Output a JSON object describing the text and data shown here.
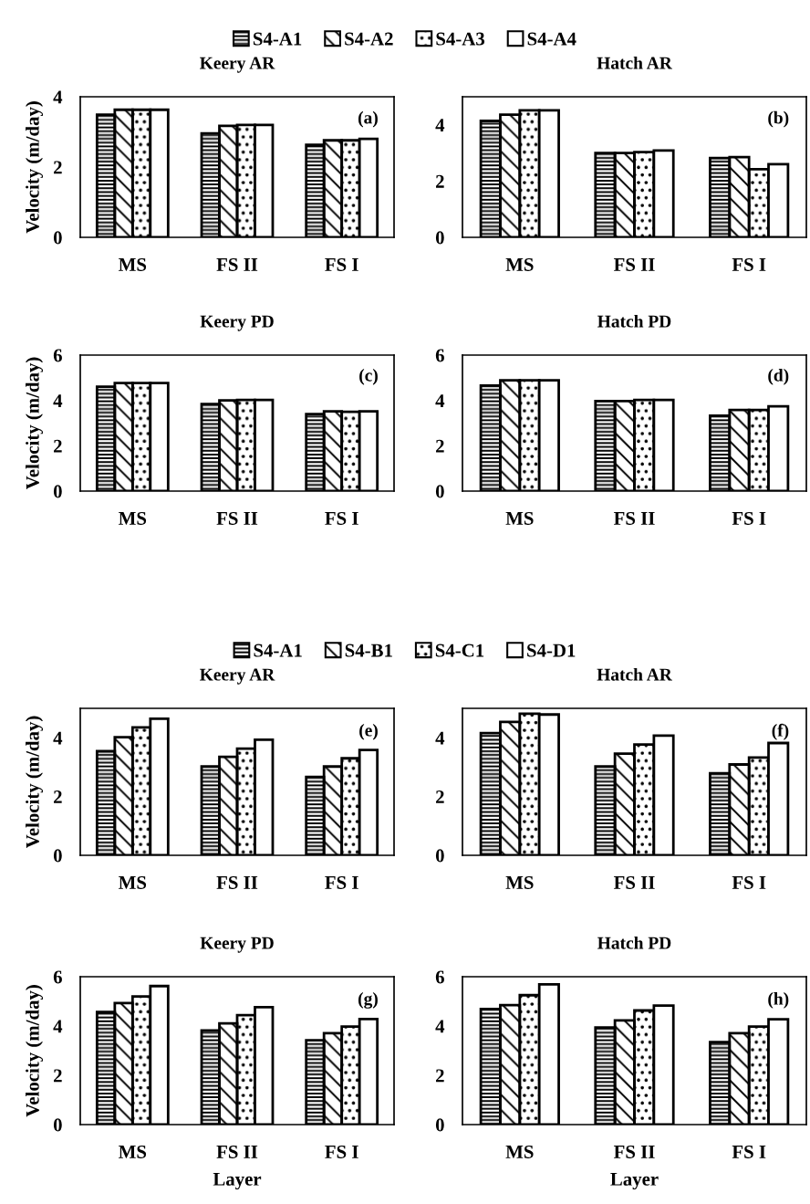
{
  "chart_data": [
    {
      "type": "bar",
      "title": "Keery AR",
      "ylabel": "Velocity (m/day)",
      "categories": [
        "MS",
        "FS II",
        "FS I"
      ],
      "ylim": [
        0,
        4
      ],
      "yticks": [
        0,
        2,
        4
      ],
      "grid": false,
      "legend": "top",
      "annotations": [
        "(a)"
      ],
      "series": [
        {
          "name": "S4-A1",
          "color": "#000000",
          "values": [
            3.49,
            2.96,
            2.63
          ]
        },
        {
          "name": "S4-A2",
          "color": "#000000",
          "values": [
            3.63,
            3.17,
            2.76
          ]
        },
        {
          "name": "S4-A3",
          "color": "#000000",
          "values": [
            3.63,
            3.2,
            2.76
          ]
        },
        {
          "name": "S4-A4",
          "color": "#ffffff",
          "values": [
            3.63,
            3.2,
            2.8
          ]
        }
      ]
    },
    {
      "type": "bar",
      "title": "Hatch AR",
      "categories": [
        "MS",
        "FS II",
        "FS I"
      ],
      "ylim": [
        0,
        5
      ],
      "yticks": [
        0,
        2,
        4
      ],
      "grid": false,
      "annotations": [
        "(b)"
      ],
      "series": [
        {
          "color": "#000000",
          "values": [
            4.14,
            3.0,
            2.82
          ]
        },
        {
          "color": "#000000",
          "values": [
            4.36,
            3.0,
            2.85
          ]
        },
        {
          "color": "#000000",
          "values": [
            4.52,
            3.03,
            2.42
          ]
        },
        {
          "color": "#ffffff",
          "values": [
            4.52,
            3.09,
            2.6
          ]
        }
      ]
    },
    {
      "type": "bar",
      "title": "Keery PD",
      "ylabel": "Velocity (m/day)",
      "categories": [
        "MS",
        "FS II",
        "FS I"
      ],
      "ylim": [
        0,
        6
      ],
      "yticks": [
        0,
        2,
        4,
        6
      ],
      "grid": false,
      "annotations": [
        "(c)"
      ],
      "series": [
        {
          "color": "#000000",
          "values": [
            4.61,
            3.84,
            3.4
          ]
        },
        {
          "color": "#000000",
          "values": [
            4.77,
            4.0,
            3.52
          ]
        },
        {
          "color": "#000000",
          "values": [
            4.77,
            4.02,
            3.5
          ]
        },
        {
          "color": "#ffffff",
          "values": [
            4.77,
            4.02,
            3.52
          ]
        }
      ]
    },
    {
      "type": "bar",
      "title": "Hatch PD",
      "categories": [
        "MS",
        "FS II",
        "FS I"
      ],
      "ylim": [
        0,
        6
      ],
      "yticks": [
        0,
        2,
        4,
        6
      ],
      "grid": false,
      "annotations": [
        "(d)"
      ],
      "series": [
        {
          "color": "#000000",
          "values": [
            4.66,
            3.97,
            3.33
          ]
        },
        {
          "color": "#000000",
          "values": [
            4.89,
            3.97,
            3.58
          ]
        },
        {
          "color": "#000000",
          "values": [
            4.89,
            4.02,
            3.58
          ]
        },
        {
          "color": "#ffffff",
          "values": [
            4.89,
            4.02,
            3.74
          ]
        }
      ]
    },
    {
      "type": "bar",
      "title": "Keery AR",
      "ylabel": "Velocity (m/day)",
      "categories": [
        "MS",
        "FS II",
        "FS I"
      ],
      "ylim": [
        0,
        5
      ],
      "yticks": [
        0,
        2,
        4
      ],
      "grid": false,
      "legend": "top",
      "annotations": [
        "(e)"
      ],
      "series": [
        {
          "name": "S4-A1",
          "color": "#000000",
          "values": [
            3.54,
            3.02,
            2.67
          ]
        },
        {
          "name": "S4-B1",
          "color": "#000000",
          "values": [
            4.02,
            3.35,
            3.02
          ]
        },
        {
          "name": "S4-C1",
          "color": "#000000",
          "values": [
            4.35,
            3.63,
            3.3
          ]
        },
        {
          "name": "S4-D1",
          "color": "#ffffff",
          "values": [
            4.65,
            3.93,
            3.58
          ]
        }
      ]
    },
    {
      "type": "bar",
      "title": "Hatch AR",
      "categories": [
        "MS",
        "FS II",
        "FS I"
      ],
      "ylim": [
        0,
        5
      ],
      "yticks": [
        0,
        2,
        4
      ],
      "grid": false,
      "annotations": [
        "(f)"
      ],
      "series": [
        {
          "color": "#000000",
          "values": [
            4.16,
            3.02,
            2.79
          ]
        },
        {
          "color": "#000000",
          "values": [
            4.54,
            3.46,
            3.09
          ]
        },
        {
          "color": "#000000",
          "values": [
            4.82,
            3.77,
            3.33
          ]
        },
        {
          "color": "#ffffff",
          "values": [
            4.79,
            4.07,
            3.82
          ]
        }
      ]
    },
    {
      "type": "bar",
      "title": "Keery PD",
      "ylabel": "Velocity (m/day)",
      "xlabel": "Layer",
      "categories": [
        "MS",
        "FS II",
        "FS I"
      ],
      "ylim": [
        0,
        6
      ],
      "yticks": [
        0,
        2,
        4,
        6
      ],
      "grid": false,
      "annotations": [
        "(g)"
      ],
      "series": [
        {
          "color": "#000000",
          "values": [
            4.57,
            3.82,
            3.42
          ]
        },
        {
          "color": "#000000",
          "values": [
            4.93,
            4.11,
            3.71
          ]
        },
        {
          "color": "#000000",
          "values": [
            5.2,
            4.44,
            3.98
          ]
        },
        {
          "color": "#ffffff",
          "values": [
            5.62,
            4.76,
            4.28
          ]
        }
      ]
    },
    {
      "type": "bar",
      "title": "Hatch PD",
      "xlabel": "Layer",
      "categories": [
        "MS",
        "FS II",
        "FS I"
      ],
      "ylim": [
        0,
        6
      ],
      "yticks": [
        0,
        2,
        4,
        6
      ],
      "grid": false,
      "annotations": [
        "(h)"
      ],
      "series": [
        {
          "color": "#000000",
          "values": [
            4.69,
            3.94,
            3.35
          ]
        },
        {
          "color": "#000000",
          "values": [
            4.85,
            4.23,
            3.71
          ]
        },
        {
          "color": "#000000",
          "values": [
            5.25,
            4.63,
            3.98
          ]
        },
        {
          "color": "#ffffff",
          "values": [
            5.69,
            4.83,
            4.27
          ]
        }
      ]
    }
  ]
}
